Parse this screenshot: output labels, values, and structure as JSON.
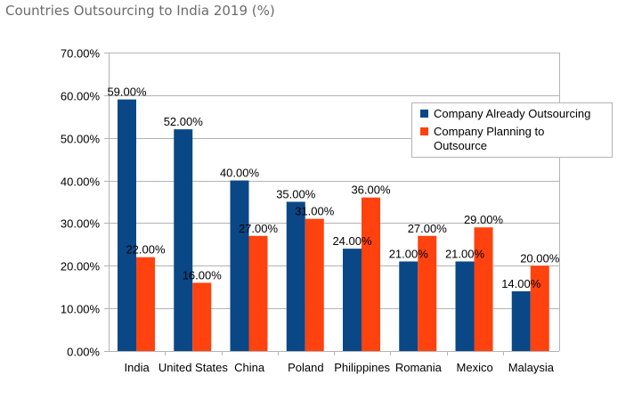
{
  "page": {
    "title": "Countries Outsourcing to India 2019 (%)"
  },
  "chart_data": {
    "type": "bar",
    "title": "",
    "xlabel": "",
    "ylabel": "",
    "categories": [
      "India",
      "United States",
      "China",
      "Poland",
      "Philippines",
      "Romania",
      "Mexico",
      "Malaysia"
    ],
    "series": [
      {
        "name": "Company Already Outsourcing",
        "color": "#0a4787",
        "values": [
          59,
          52,
          40,
          35,
          24,
          21,
          21,
          14
        ],
        "labels": [
          "59.00%",
          "52.00%",
          "40.00%",
          "35.00%",
          "24.00%",
          "21.00%",
          "21.00%",
          "14.00%"
        ]
      },
      {
        "name": "Company Planning to Outsource",
        "color": "#ff420e",
        "values": [
          22,
          16,
          27,
          31,
          36,
          27,
          29,
          20
        ],
        "labels": [
          "22.00%",
          "16.00%",
          "27.00%",
          "31.00%",
          "36.00%",
          "27.00%",
          "29.00%",
          "20.00%"
        ]
      }
    ],
    "ylim": [
      0,
      70
    ],
    "yticks": [
      0,
      10,
      20,
      30,
      40,
      50,
      60,
      70
    ],
    "ytick_labels": [
      "0.00%",
      "10.00%",
      "20.00%",
      "30.00%",
      "40.00%",
      "50.00%",
      "60.00%",
      "70.00%"
    ],
    "grid": true,
    "legend_position": "right"
  }
}
